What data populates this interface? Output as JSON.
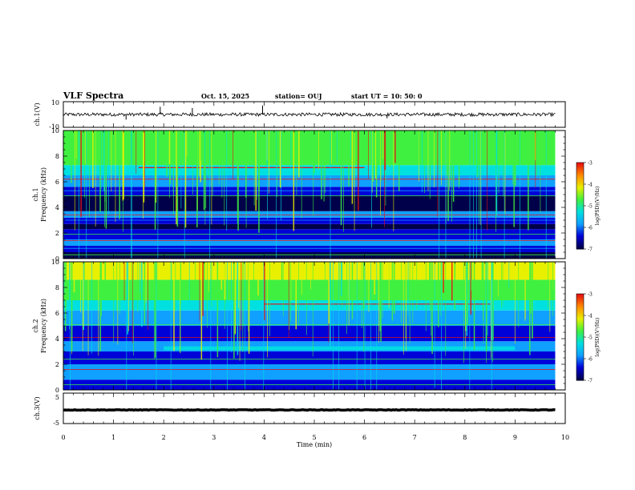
{
  "header": {
    "title": "VLF Spectra",
    "date": "Oct. 15, 2025",
    "station": "station= OUJ",
    "start_ut": "start  UT =   10: 50: 0"
  },
  "colors": {
    "spec_deep": "#00004a",
    "spec_blue": "#0000d8",
    "spec_lightblue": "#10a0ff",
    "spec_cyan": "#00e0e0",
    "spec_green": "#40f040",
    "spec_yellow": "#e8f000",
    "spec_red": "#e81010"
  },
  "chart_data": [
    {
      "type": "line",
      "id": "ch1_waveform",
      "ylabel": "ch.1(V)",
      "ylim": [
        -10,
        10
      ],
      "yticks": [
        "10",
        "-10"
      ],
      "xlim": [
        0,
        10
      ],
      "baseline": 0,
      "noise_amplitude": 1.3,
      "spikes": [
        {
          "t": 1.93,
          "v": 6
        },
        {
          "t": 2.57,
          "v": 5
        },
        {
          "t": 3.97,
          "v": 7
        },
        {
          "t": 1.25,
          "v": -4
        },
        {
          "t": 6.45,
          "v": -3
        }
      ]
    },
    {
      "type": "heatmap",
      "id": "ch1_spectrogram",
      "ylabel": "ch.1\nFrequency  (kHz)",
      "ylim": [
        0,
        10
      ],
      "yticks": [
        "0",
        "2",
        "4",
        "6",
        "8",
        "10"
      ],
      "xlim": [
        0,
        10
      ],
      "data_end_min": 9.8,
      "colorbar": {
        "label": "log(PSD)(V²/Hz)",
        "range": [
          -7,
          -3
        ],
        "ticks": [
          "-3",
          "-4",
          "-5",
          "-6",
          "-7"
        ]
      },
      "bands_khz": [
        {
          "f": [
            0,
            0.5
          ],
          "c": "spec_deep"
        },
        {
          "f": [
            0.5,
            1.0
          ],
          "c": "spec_blue"
        },
        {
          "f": [
            1.0,
            1.5
          ],
          "c": "spec_lightblue"
        },
        {
          "f": [
            1.5,
            2.3
          ],
          "c": "spec_blue"
        },
        {
          "f": [
            2.3,
            2.7
          ],
          "c": "spec_deep"
        },
        {
          "f": [
            2.7,
            3.2
          ],
          "c": "spec_blue"
        },
        {
          "f": [
            3.2,
            3.7
          ],
          "c": "spec_lightblue"
        },
        {
          "f": [
            3.7,
            4.9
          ],
          "c": "spec_deep"
        },
        {
          "f": [
            4.9,
            5.6
          ],
          "c": "spec_blue"
        },
        {
          "f": [
            5.6,
            6.5
          ],
          "c": "spec_lightblue"
        },
        {
          "f": [
            6.5,
            7.3
          ],
          "c": "spec_cyan"
        },
        {
          "f": [
            7.3,
            8.5
          ],
          "c": "spec_green"
        },
        {
          "f": [
            8.5,
            10
          ],
          "c": "spec_green"
        }
      ],
      "tones_khz": [
        0.3,
        0.8,
        1.4,
        1.9,
        3.0,
        3.4,
        4.9,
        5.3,
        6.2
      ],
      "red_tone": {
        "f": 7.1,
        "t": [
          1.5,
          6.0
        ]
      }
    },
    {
      "type": "heatmap",
      "id": "ch2_spectrogram",
      "ylabel": "ch.2\nFrequency  (kHz)",
      "ylim": [
        0,
        10
      ],
      "yticks": [
        "0",
        "2",
        "4",
        "6",
        "8",
        "10"
      ],
      "xlim": [
        0,
        10
      ],
      "data_end_min": 9.8,
      "colorbar": {
        "label": "log(PSD)(V²/Hz)",
        "range": [
          -7,
          -3
        ],
        "ticks": [
          "-3",
          "-4",
          "-5",
          "-6",
          "-7"
        ]
      },
      "bands_khz": [
        {
          "f": [
            0,
            0.8
          ],
          "c": "spec_blue"
        },
        {
          "f": [
            0.8,
            2.0
          ],
          "c": "spec_lightblue"
        },
        {
          "f": [
            2.0,
            3.0
          ],
          "c": "spec_blue"
        },
        {
          "f": [
            3.0,
            3.8
          ],
          "c": "spec_lightblue"
        },
        {
          "f": [
            3.8,
            5.0
          ],
          "c": "spec_blue"
        },
        {
          "f": [
            5.0,
            6.2
          ],
          "c": "spec_lightblue"
        },
        {
          "f": [
            6.2,
            7.0
          ],
          "c": "spec_cyan"
        },
        {
          "f": [
            7.0,
            8.6
          ],
          "c": "spec_green"
        },
        {
          "f": [
            8.6,
            10
          ],
          "c": "spec_yellow"
        }
      ],
      "tones_khz": [
        0.4,
        1.0,
        1.6,
        2.4,
        3.3,
        4.1,
        5.1
      ],
      "red_tone": {
        "f": 6.7,
        "t": [
          4.0,
          8.5
        ]
      },
      "green_band": {
        "f": [
          3.1,
          3.4
        ],
        "t": [
          2.0,
          9.0
        ]
      }
    },
    {
      "type": "line",
      "id": "ch3_waveform",
      "ylabel": "ch.3(V)",
      "ylim": [
        -5,
        5
      ],
      "yticks": [
        "5",
        "-5"
      ],
      "xlim": [
        0,
        10
      ],
      "xlabel": "Time  (min)",
      "xticks": [
        "0",
        "1",
        "2",
        "3",
        "4",
        "5",
        "6",
        "7",
        "8",
        "9",
        "10"
      ],
      "baseline": 0,
      "noise_amplitude": 0.3
    }
  ]
}
